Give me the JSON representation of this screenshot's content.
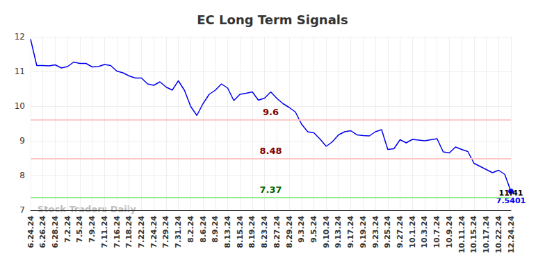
{
  "chart_data": {
    "type": "line",
    "title": "EC Long Term Signals",
    "color": "#0000ee",
    "categories": [
      "6.24.24",
      null,
      "6.26.24",
      null,
      "6.28.24",
      null,
      "7.2.24",
      null,
      "7.5.24",
      null,
      "7.9.24",
      null,
      "7.11.24",
      null,
      "7.16.24",
      null,
      "7.18.24",
      null,
      "7.22.24",
      null,
      "7.24.24",
      null,
      "7.29.24",
      null,
      "7.31.24",
      null,
      "8.2.24",
      null,
      "8.6.24",
      null,
      "8.9.24",
      null,
      "8.13.24",
      null,
      "8.15.24",
      null,
      "8.19.24",
      null,
      "8.23.24",
      null,
      "8.27.24",
      null,
      "8.29.24",
      null,
      "9.3.24",
      null,
      "9.5.24",
      null,
      "9.10.24",
      null,
      "9.13.24",
      null,
      "9.17.24",
      null,
      "9.19.24",
      null,
      "9.23.24",
      null,
      "9.25.24",
      null,
      "9.27.24",
      null,
      "10.1.24",
      null,
      "10.3.24",
      null,
      "10.7.24",
      null,
      "10.9.24",
      null,
      "10.11.24",
      null,
      "10.15.24",
      null,
      "10.17.24",
      null,
      "10.22.24",
      null,
      "12.24.24"
    ],
    "values": [
      11.93,
      11.17,
      11.17,
      11.16,
      11.19,
      11.1,
      11.14,
      11.27,
      11.23,
      11.23,
      11.13,
      11.14,
      11.2,
      11.17,
      11.01,
      10.96,
      10.87,
      10.81,
      10.81,
      10.64,
      10.6,
      10.7,
      10.55,
      10.46,
      10.73,
      10.45,
      9.99,
      9.73,
      10.07,
      10.34,
      10.46,
      10.64,
      10.52,
      10.16,
      10.34,
      10.37,
      10.41,
      10.17,
      10.23,
      10.41,
      10.22,
      10.07,
      9.96,
      9.83,
      9.48,
      9.26,
      9.23,
      9.05,
      8.84,
      8.97,
      9.17,
      9.26,
      9.29,
      9.17,
      9.15,
      9.14,
      9.26,
      9.32,
      8.75,
      8.77,
      9.03,
      8.94,
      9.04,
      9.02,
      9.0,
      9.03,
      9.06,
      8.68,
      8.65,
      8.82,
      8.75,
      8.69,
      8.35,
      8.26,
      8.17,
      8.08,
      8.15,
      8.03,
      7.5401
    ],
    "ylim": [
      7,
      12
    ],
    "yticks": [
      7,
      8,
      9,
      10,
      11,
      12
    ],
    "grid": true,
    "signal_levels": [
      {
        "value": 9.6,
        "color": "#ffc8c8",
        "label_color": "#800000"
      },
      {
        "value": 8.48,
        "color": "#ffc8c8",
        "label_color": "#800000"
      },
      {
        "value": 7.37,
        "color": "#90ee90",
        "label_color": "#006400"
      }
    ],
    "last_label": {
      "time": "11:41",
      "value": 7.5401
    },
    "watermark": "Stock Traders Daily"
  }
}
